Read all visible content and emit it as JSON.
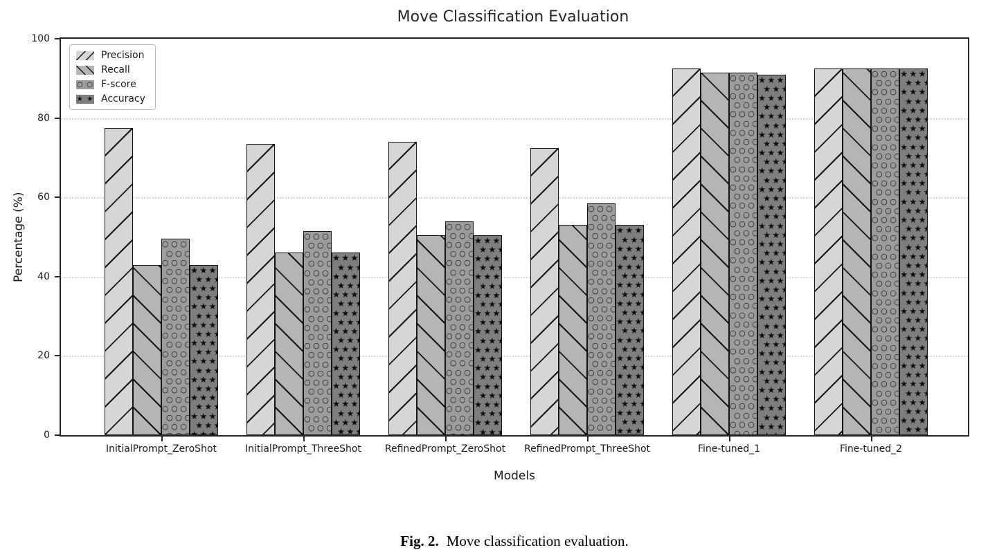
{
  "figure": {
    "caption_label": "Fig. 2.",
    "caption_text": "Move classification evaluation."
  },
  "icons": {
    "circle_hatch_glyph": "○",
    "star_hatch_glyph": "★",
    "circle_pair": "○ ○",
    "star_pair": "★ ★"
  },
  "colors": {
    "background": "#ffffff",
    "axis": "#262626",
    "text": "#1a1a1a",
    "grid": "#d2d2d2",
    "hatch": "#141414",
    "precision_fill": "#d6d6d6",
    "recall_fill": "#b5b5b5",
    "fscore_fill": "#9c9c9c",
    "accuracy_fill": "#7e7e7e"
  },
  "chart_data": {
    "type": "bar",
    "title": "Move Classification Evaluation",
    "xlabel": "Models",
    "ylabel": "Percentage (%)",
    "ylim": [
      0,
      100
    ],
    "yticks": [
      0,
      20,
      40,
      60,
      80,
      100
    ],
    "grid": "horizontal-dotted",
    "legend_position": "upper-left",
    "legend_entries": [
      "Precision",
      "Recall",
      "F-score",
      "Accuracy"
    ],
    "categories": [
      "InitialPrompt_ZeroShot",
      "InitialPrompt_ThreeShot",
      "RefinedPrompt_ZeroShot",
      "RefinedPrompt_ThreeShot",
      "Fine-tuned_1",
      "Fine-tuned_2"
    ],
    "series": [
      {
        "name": "Precision",
        "hatch": "/",
        "color": "#d6d6d6",
        "values": [
          77.5,
          73.5,
          74,
          72.5,
          92.5,
          92.5
        ]
      },
      {
        "name": "Recall",
        "hatch": "\\",
        "color": "#b5b5b5",
        "values": [
          43,
          46,
          50.5,
          53,
          91.5,
          92.5
        ]
      },
      {
        "name": "F-score",
        "hatch": "o",
        "color": "#9c9c9c",
        "values": [
          49.5,
          51.5,
          54,
          58.5,
          91.5,
          92.5
        ]
      },
      {
        "name": "Accuracy",
        "hatch": "*",
        "color": "#7e7e7e",
        "values": [
          43,
          46,
          50.5,
          53,
          91,
          92.5
        ]
      }
    ]
  }
}
